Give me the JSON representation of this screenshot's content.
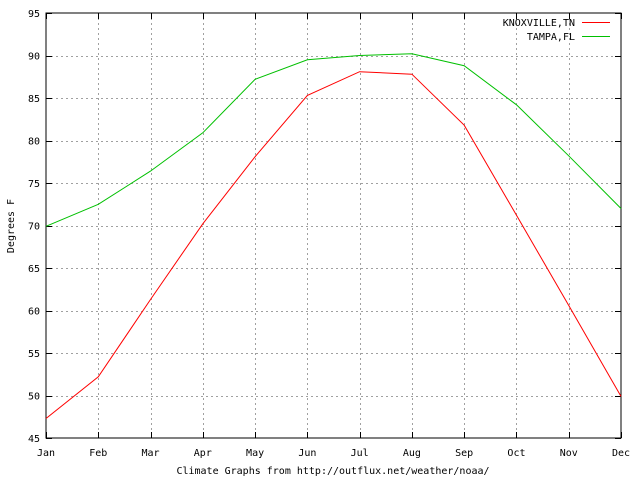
{
  "chart_data": {
    "type": "line",
    "xlabel": "Climate Graphs from http://outflux.net/weather/noaa/",
    "ylabel": "Degrees F",
    "categories": [
      "Jan",
      "Feb",
      "Mar",
      "Apr",
      "May",
      "Jun",
      "Jul",
      "Aug",
      "Sep",
      "Oct",
      "Nov",
      "Dec"
    ],
    "yticks": [
      45,
      50,
      55,
      60,
      65,
      70,
      75,
      80,
      85,
      90,
      95
    ],
    "ylim": [
      45,
      95
    ],
    "grid": true,
    "legend_position": "top-right",
    "series": [
      {
        "name": "KNOXVILLE,TN",
        "color": "#ff0000",
        "values": [
          47.3,
          52.2,
          61.3,
          70.2,
          78.1,
          85.3,
          88.1,
          87.8,
          81.8,
          71.2,
          60.6,
          49.9
        ]
      },
      {
        "name": "TAMPA,FL",
        "color": "#00c000",
        "values": [
          69.9,
          72.5,
          76.4,
          80.9,
          87.2,
          89.5,
          90.0,
          90.2,
          88.8,
          84.2,
          78.2,
          72.0
        ]
      }
    ]
  }
}
